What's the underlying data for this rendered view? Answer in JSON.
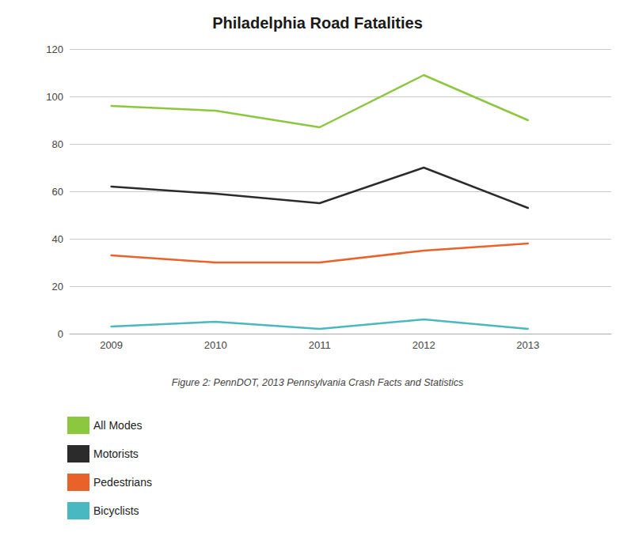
{
  "chart_data": {
    "type": "line",
    "title": "Philadelphia Road Fatalities",
    "caption": "Figure 2: PennDOT, 2013 Pennsylvania Crash Facts and Statistics",
    "x": [
      2009,
      2010,
      2011,
      2012,
      2013
    ],
    "series": [
      {
        "name": "All Modes",
        "color": "#8dc63f",
        "values": [
          96,
          94,
          87,
          109,
          90
        ]
      },
      {
        "name": "Motorists",
        "color": "#2b2b2b",
        "values": [
          62,
          59,
          55,
          70,
          53
        ]
      },
      {
        "name": "Pedestrians",
        "color": "#e8622a",
        "values": [
          33,
          30,
          30,
          35,
          38
        ]
      },
      {
        "name": "Bicyclists",
        "color": "#4ab8c1",
        "values": [
          3,
          5,
          2,
          6,
          2
        ]
      }
    ],
    "xlim": [
      2008.6,
      2013.8
    ],
    "xticks": [
      2009,
      2010,
      2011,
      2012,
      2013
    ],
    "ylim": [
      0,
      120
    ],
    "yticks": [
      0,
      20,
      40,
      60,
      80,
      100,
      120
    ],
    "grid": true
  }
}
